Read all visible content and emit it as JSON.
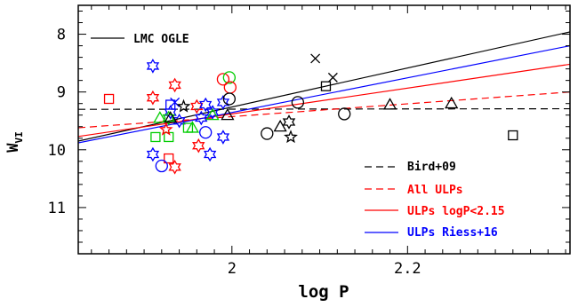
{
  "chart_data": {
    "type": "scatter",
    "xlabel": "log P",
    "ylabel": "W",
    "ylabel_sub": "VI",
    "xlim": [
      1.825,
      2.385
    ],
    "ylim": [
      11.8,
      7.5
    ],
    "x_tick_labels": [
      {
        "value": 2.0,
        "label": "2"
      },
      {
        "value": 2.2,
        "label": "2.2"
      }
    ],
    "y_tick_labels": [
      {
        "value": 8,
        "label": "8"
      },
      {
        "value": 9,
        "label": "9"
      },
      {
        "value": 10,
        "label": "10"
      },
      {
        "value": 11,
        "label": "11"
      }
    ],
    "x_minor_step": 0.02,
    "y_minor_step": 0.2,
    "lines": [
      {
        "name": "LMC OGLE",
        "color": "#000000",
        "dash": "solid",
        "x": [
          1.825,
          2.385
        ],
        "y": [
          9.85,
          7.96
        ]
      },
      {
        "name": "Bird+09",
        "color": "#000000",
        "dash": "dashed",
        "x": [
          1.825,
          2.385
        ],
        "y": [
          9.3,
          9.29
        ]
      },
      {
        "name": "All ULPs",
        "color": "#ff0000",
        "dash": "dashed",
        "x": [
          1.825,
          2.385
        ],
        "y": [
          9.62,
          9.0
        ]
      },
      {
        "name": "ULPs logP<2.15",
        "color": "#ff0000",
        "dash": "solid",
        "x": [
          1.825,
          2.385
        ],
        "y": [
          9.77,
          8.52
        ]
      },
      {
        "name": "ULPs Riess+16",
        "color": "#0000ff",
        "dash": "solid",
        "x": [
          1.825,
          2.385
        ],
        "y": [
          9.88,
          8.2
        ]
      }
    ],
    "points": [
      {
        "m": "star",
        "c": "#0000ff",
        "x": 1.91,
        "y": 8.55
      },
      {
        "m": "star",
        "c": "#ff0000",
        "x": 1.91,
        "y": 9.1
      },
      {
        "m": "star",
        "c": "#ff0000",
        "x": 1.935,
        "y": 8.88
      },
      {
        "m": "star",
        "c": "#0000ff",
        "x": 1.91,
        "y": 10.08
      },
      {
        "m": "star",
        "c": "#ff0000",
        "x": 1.935,
        "y": 10.3
      },
      {
        "m": "star",
        "c": "#0000ff",
        "x": 1.94,
        "y": 9.5
      },
      {
        "m": "star",
        "c": "#0000ff",
        "x": 1.93,
        "y": 9.35
      },
      {
        "m": "star",
        "c": "#ff0000",
        "x": 1.96,
        "y": 9.25
      },
      {
        "m": "star",
        "c": "#ff0000",
        "x": 1.962,
        "y": 9.93
      },
      {
        "m": "star",
        "c": "#0000ff",
        "x": 1.965,
        "y": 9.45
      },
      {
        "m": "star",
        "c": "#0000ff",
        "x": 1.97,
        "y": 9.22
      },
      {
        "m": "star",
        "c": "#0000ff",
        "x": 1.978,
        "y": 9.35
      },
      {
        "m": "star",
        "c": "#0000ff",
        "x": 1.99,
        "y": 9.18
      },
      {
        "m": "star",
        "c": "#0000ff",
        "x": 1.99,
        "y": 9.78
      },
      {
        "m": "star",
        "c": "#0000ff",
        "x": 1.975,
        "y": 10.08
      },
      {
        "m": "star",
        "c": "#00cc00",
        "x": 1.928,
        "y": 9.45
      },
      {
        "m": "star",
        "c": "#000000",
        "x": 2.065,
        "y": 9.52
      },
      {
        "m": "square",
        "c": "#ff0000",
        "x": 1.86,
        "y": 9.12
      },
      {
        "m": "square",
        "c": "#0000ff",
        "x": 1.93,
        "y": 9.22
      },
      {
        "m": "square",
        "c": "#00cc00",
        "x": 1.913,
        "y": 9.78
      },
      {
        "m": "square",
        "c": "#00cc00",
        "x": 1.928,
        "y": 9.78
      },
      {
        "m": "square",
        "c": "#00cc00",
        "x": 1.95,
        "y": 9.62
      },
      {
        "m": "square",
        "c": "#ff0000",
        "x": 1.928,
        "y": 10.15
      },
      {
        "m": "square",
        "c": "#000000",
        "x": 2.107,
        "y": 8.9
      },
      {
        "m": "square",
        "c": "#000000",
        "x": 2.32,
        "y": 9.75
      },
      {
        "m": "circle",
        "c": "#ff0000",
        "x": 1.99,
        "y": 8.78
      },
      {
        "m": "circle",
        "c": "#00cc00",
        "x": 1.997,
        "y": 8.75
      },
      {
        "m": "circle",
        "c": "#ff0000",
        "x": 1.998,
        "y": 8.92
      },
      {
        "m": "circle",
        "c": "#000000",
        "x": 1.997,
        "y": 9.12
      },
      {
        "m": "circle",
        "c": "#0000ff",
        "x": 1.97,
        "y": 9.7
      },
      {
        "m": "circle",
        "c": "#0000ff",
        "x": 1.92,
        "y": 10.28
      },
      {
        "m": "circle",
        "c": "#000000",
        "x": 2.04,
        "y": 9.72
      },
      {
        "m": "circle",
        "c": "#000000",
        "x": 2.075,
        "y": 9.18
      },
      {
        "m": "circle",
        "c": "#000000",
        "x": 2.128,
        "y": 9.38
      },
      {
        "m": "triangle",
        "c": "#00cc00",
        "x": 1.918,
        "y": 9.45
      },
      {
        "m": "triangle",
        "c": "#000000",
        "x": 1.93,
        "y": 9.45
      },
      {
        "m": "triangle",
        "c": "#00cc00",
        "x": 1.955,
        "y": 9.62
      },
      {
        "m": "triangle",
        "c": "#00cc00",
        "x": 1.978,
        "y": 9.4
      },
      {
        "m": "triangle",
        "c": "#000000",
        "x": 1.995,
        "y": 9.4
      },
      {
        "m": "triangle",
        "c": "#000000",
        "x": 2.055,
        "y": 9.6
      },
      {
        "m": "triangle",
        "c": "#000000",
        "x": 2.18,
        "y": 9.22
      },
      {
        "m": "triangle",
        "c": "#000000",
        "x": 2.25,
        "y": 9.2
      },
      {
        "m": "cross",
        "c": "#0000ff",
        "x": 1.935,
        "y": 9.18
      },
      {
        "m": "cross",
        "c": "#000000",
        "x": 2.095,
        "y": 8.42
      },
      {
        "m": "cross",
        "c": "#000000",
        "x": 2.115,
        "y": 8.75
      },
      {
        "m": "tristar",
        "c": "#000000",
        "x": 1.945,
        "y": 9.25
      },
      {
        "m": "tristar",
        "c": "#000000",
        "x": 2.067,
        "y": 9.78
      },
      {
        "m": "tristar",
        "c": "#ff0000",
        "x": 1.925,
        "y": 9.65
      }
    ]
  }
}
